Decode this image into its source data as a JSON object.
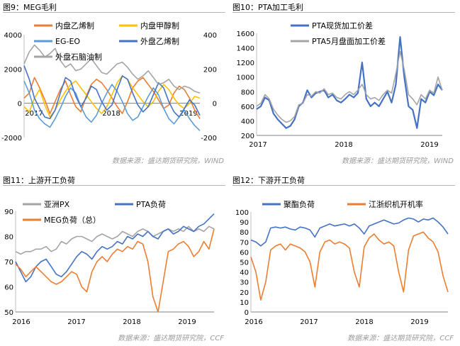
{
  "source_wind": "数据来源：盛达期货研究院，WIND",
  "source_ccf": "数据来源：盛达期货研究院，CCF",
  "colors": {
    "blue": "#4472C4",
    "orange": "#ED7D31",
    "yellow": "#FFC000",
    "lightblue": "#5B9BD5",
    "gray": "#A5A5A5"
  },
  "chart_data": [
    {
      "id": "fig9",
      "type": "line",
      "title": "图9：MEG毛利",
      "xticks": [
        "2017",
        "2018",
        "2019"
      ],
      "ylim": [
        -2000,
        4000
      ],
      "yticks": [
        "-2000",
        "0",
        "2000",
        "4000"
      ],
      "y2lim": [
        -200,
        400
      ],
      "y2ticks": [
        "-200",
        "0",
        "200",
        "400"
      ],
      "series": [
        {
          "name": "内盘乙烯制",
          "color": "#ED7D31",
          "axis": "left",
          "values": [
            300,
            600,
            1500,
            900,
            200,
            -600,
            100,
            800,
            1300,
            500,
            -200,
            -500,
            400,
            1100,
            1400,
            1200,
            800,
            300,
            -200,
            -600,
            100,
            900,
            1300,
            1500,
            1100,
            700,
            200,
            -300,
            -100,
            600,
            1000,
            800,
            300,
            -400,
            -900
          ]
        },
        {
          "name": "内盘甲醇制",
          "color": "#FFC000",
          "axis": "left",
          "values": [
            -200,
            -500,
            300,
            800,
            -100,
            -800,
            -400,
            200,
            700,
            1100,
            1300,
            900,
            500,
            100,
            -300,
            -600,
            -200,
            500,
            1200,
            1600,
            1400,
            900,
            500,
            100,
            -200,
            100,
            700,
            1100,
            800,
            300,
            -100,
            -300,
            0,
            400,
            300
          ]
        },
        {
          "name": "EG-EO",
          "color": "#5B9BD5",
          "axis": "left",
          "values": [
            1300,
            600,
            -400,
            -900,
            -1200,
            -1400,
            -900,
            -300,
            400,
            900,
            600,
            -200,
            -800,
            -1100,
            -700,
            0,
            600,
            1100,
            700,
            100,
            -600,
            -1000,
            -800,
            -200,
            400,
            900,
            500,
            -300,
            -900,
            -1200,
            -800,
            -400,
            -900,
            -1300,
            -1600
          ]
        },
        {
          "name": "外盘乙烯制",
          "color": "#4472C4",
          "axis": "left",
          "values": [
            2200,
            1400,
            300,
            -300,
            -800,
            -900,
            -400,
            600,
            1500,
            1300,
            400,
            -200,
            300,
            1000,
            800,
            100,
            -400,
            -100,
            800,
            1600,
            1400,
            600,
            -100,
            -500,
            -200,
            500,
            1200,
            900,
            100,
            -500,
            -800,
            -300,
            200,
            -100,
            -700
          ]
        },
        {
          "name": "外盘石脑油制",
          "color": "#A5A5A5",
          "axis": "right",
          "values": [
            230,
            300,
            340,
            310,
            270,
            290,
            320,
            250,
            210,
            230,
            190,
            200,
            230,
            260,
            220,
            180,
            170,
            200,
            230,
            240,
            210,
            170,
            140,
            160,
            190,
            150,
            110,
            120,
            140,
            100,
            80,
            100,
            90,
            70,
            60
          ]
        }
      ]
    },
    {
      "id": "fig10",
      "type": "line",
      "title": "图10：PTA加工毛利",
      "xticks": [
        "2017",
        "2018",
        "2019"
      ],
      "ylim": [
        200,
        1600
      ],
      "yticks": [
        "200",
        "400",
        "600",
        "800",
        "1000",
        "1200",
        "1400",
        "1600"
      ],
      "series": [
        {
          "name": "PTA现货加工价差",
          "color": "#4472C4",
          "values": [
            560,
            600,
            720,
            680,
            500,
            420,
            360,
            300,
            330,
            420,
            600,
            650,
            820,
            720,
            780,
            800,
            820,
            720,
            760,
            680,
            650,
            700,
            760,
            720,
            780,
            1200,
            700,
            600,
            650,
            600,
            700,
            800,
            650,
            900,
            1550,
            1000,
            600,
            550,
            300,
            700,
            650,
            800,
            750,
            900,
            820
          ]
        },
        {
          "name": "PTA5月盘面加工价差",
          "color": "#A5A5A5",
          "values": [
            600,
            640,
            760,
            700,
            560,
            480,
            420,
            380,
            400,
            460,
            620,
            640,
            760,
            740,
            800,
            780,
            840,
            760,
            780,
            720,
            700,
            760,
            800,
            760,
            820,
            900,
            760,
            700,
            720,
            680,
            760,
            820,
            780,
            1050,
            1350,
            1100,
            760,
            700,
            620,
            760,
            700,
            820,
            780,
            1000,
            820
          ]
        }
      ]
    },
    {
      "id": "fig11",
      "type": "line",
      "title": "图11：上游开工负荷",
      "xticks": [
        "2016",
        "2017",
        "2018",
        "2019"
      ],
      "ylim": [
        50,
        90
      ],
      "yticks": [
        "50",
        "60",
        "70",
        "80",
        "90"
      ],
      "series": [
        {
          "name": "亚洲PX",
          "color": "#A5A5A5",
          "values": [
            74,
            73,
            74,
            74,
            75,
            75,
            76,
            74,
            75,
            78,
            77,
            79,
            80,
            80,
            79,
            78,
            80,
            81,
            80,
            79,
            80,
            82,
            81,
            80,
            82,
            83,
            82,
            80,
            81,
            82,
            83,
            82,
            83,
            82,
            84,
            82,
            83,
            82,
            84,
            83
          ]
        },
        {
          "name": "PTA负荷",
          "color": "#4472C4",
          "values": [
            70,
            66,
            62,
            64,
            68,
            70,
            71,
            68,
            65,
            64,
            66,
            69,
            72,
            74,
            73,
            71,
            74,
            76,
            75,
            76,
            78,
            77,
            80,
            79,
            81,
            80,
            82,
            80,
            79,
            82,
            83,
            81,
            82,
            84,
            83,
            82,
            84,
            85,
            87,
            89
          ]
        },
        {
          "name": "MEG负荷（总）",
          "color": "#ED7D31",
          "values": [
            69,
            67,
            64,
            66,
            68,
            66,
            64,
            62,
            61,
            62,
            64,
            66,
            65,
            60,
            58,
            66,
            70,
            72,
            70,
            73,
            75,
            74,
            76,
            75,
            78,
            77,
            70,
            56,
            50,
            62,
            74,
            75,
            77,
            78,
            76,
            72,
            74,
            78,
            75,
            83
          ]
        }
      ]
    },
    {
      "id": "fig12",
      "type": "line",
      "title": "图12：下游开工负荷",
      "xticks": [
        "2016",
        "2017",
        "2018",
        "2019"
      ],
      "ylim": [
        0,
        100
      ],
      "yticks": [
        "0",
        "10",
        "20",
        "30",
        "40",
        "50",
        "60",
        "70",
        "80",
        "90",
        "100"
      ],
      "series": [
        {
          "name": "聚酯负荷",
          "color": "#4472C4",
          "values": [
            72,
            70,
            66,
            70,
            84,
            85,
            84,
            85,
            83,
            82,
            85,
            84,
            82,
            75,
            84,
            86,
            88,
            86,
            87,
            88,
            86,
            88,
            84,
            78,
            86,
            88,
            90,
            92,
            90,
            88,
            89,
            92,
            94,
            93,
            90,
            93,
            92,
            94,
            90,
            85,
            78
          ]
        },
        {
          "name": "江浙织机开机率",
          "color": "#ED7D31",
          "values": [
            55,
            40,
            12,
            30,
            62,
            66,
            68,
            62,
            68,
            66,
            64,
            60,
            50,
            25,
            60,
            70,
            72,
            68,
            70,
            68,
            64,
            40,
            25,
            65,
            74,
            78,
            72,
            68,
            70,
            66,
            40,
            20,
            62,
            76,
            78,
            80,
            74,
            70,
            60,
            36,
            20
          ]
        }
      ]
    }
  ]
}
